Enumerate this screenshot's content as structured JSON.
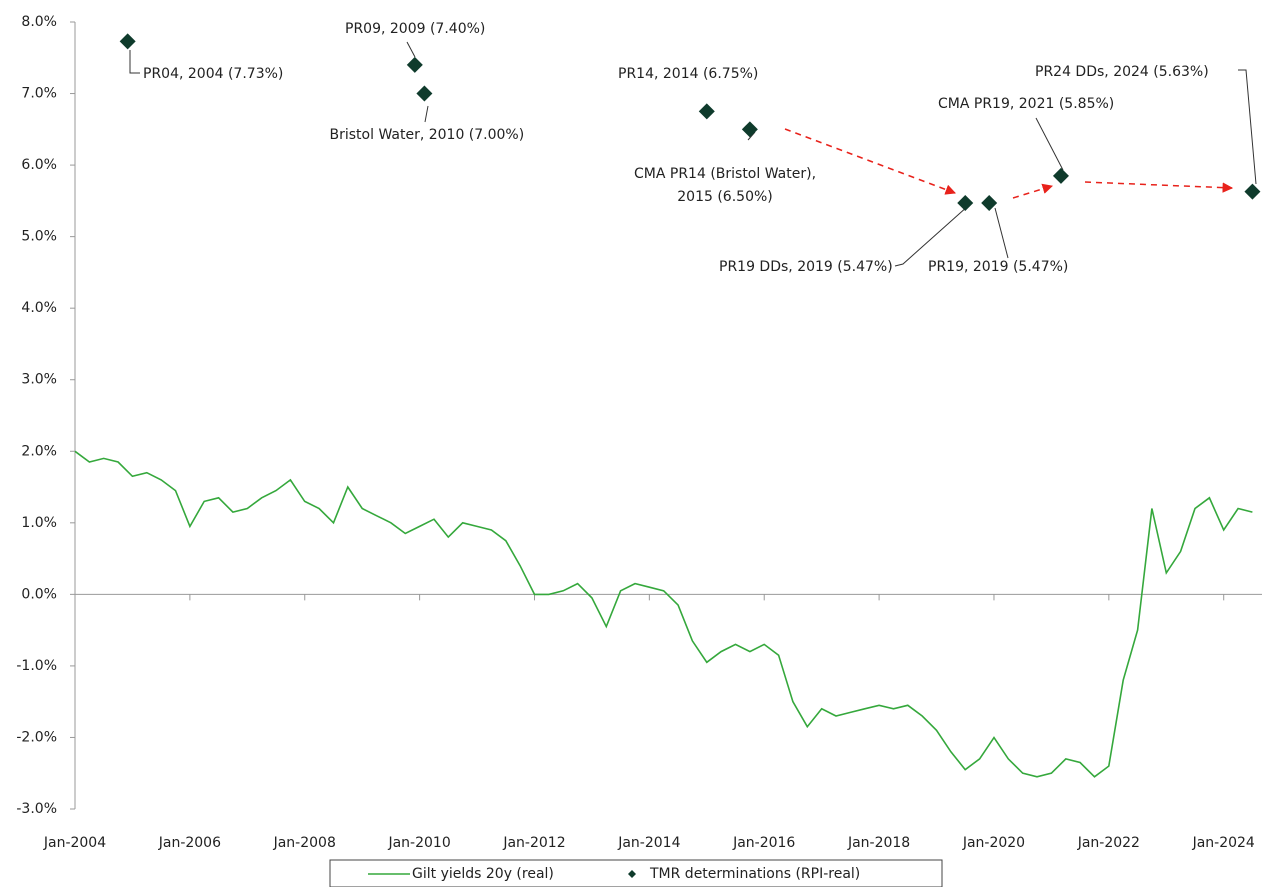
{
  "chart_data": {
    "type": "line",
    "xlim": [
      "2004-01",
      "2024-09"
    ],
    "ylim": [
      -3,
      8
    ],
    "yticks": [
      {
        "value": -3,
        "label": "-3.0%"
      },
      {
        "value": -2,
        "label": "-2.0%"
      },
      {
        "value": -1,
        "label": "-1.0%"
      },
      {
        "value": 0,
        "label": "0.0%"
      },
      {
        "value": 1,
        "label": "1.0%"
      },
      {
        "value": 2,
        "label": "2.0%"
      },
      {
        "value": 3,
        "label": "3.0%"
      },
      {
        "value": 4,
        "label": "4.0%"
      },
      {
        "value": 5,
        "label": "5.0%"
      },
      {
        "value": 6,
        "label": "6.0%"
      },
      {
        "value": 7,
        "label": "7.0%"
      },
      {
        "value": 8,
        "label": "8.0%"
      }
    ],
    "xticks": [
      {
        "value": "2004-01",
        "label": "Jan-2004"
      },
      {
        "value": "2006-01",
        "label": "Jan-2006"
      },
      {
        "value": "2008-01",
        "label": "Jan-2008"
      },
      {
        "value": "2010-01",
        "label": "Jan-2010"
      },
      {
        "value": "2012-01",
        "label": "Jan-2012"
      },
      {
        "value": "2014-01",
        "label": "Jan-2014"
      },
      {
        "value": "2016-01",
        "label": "Jan-2016"
      },
      {
        "value": "2018-01",
        "label": "Jan-2018"
      },
      {
        "value": "2020-01",
        "label": "Jan-2020"
      },
      {
        "value": "2022-01",
        "label": "Jan-2022"
      },
      {
        "value": "2024-01",
        "label": "Jan-2024"
      }
    ],
    "legend": "bottom",
    "series": [
      {
        "name": "Gilt yields 20y (real)",
        "type": "line",
        "color": "#35a83c",
        "x": [
          "2004-01",
          "2004-04",
          "2004-07",
          "2004-10",
          "2005-01",
          "2005-04",
          "2005-07",
          "2005-10",
          "2006-01",
          "2006-04",
          "2006-07",
          "2006-10",
          "2007-01",
          "2007-04",
          "2007-07",
          "2007-10",
          "2008-01",
          "2008-04",
          "2008-07",
          "2008-10",
          "2009-01",
          "2009-04",
          "2009-07",
          "2009-10",
          "2010-01",
          "2010-04",
          "2010-07",
          "2010-10",
          "2011-01",
          "2011-04",
          "2011-07",
          "2011-10",
          "2012-01",
          "2012-04",
          "2012-07",
          "2012-10",
          "2013-01",
          "2013-04",
          "2013-07",
          "2013-10",
          "2014-01",
          "2014-04",
          "2014-07",
          "2014-10",
          "2015-01",
          "2015-04",
          "2015-07",
          "2015-10",
          "2016-01",
          "2016-04",
          "2016-07",
          "2016-10",
          "2017-01",
          "2017-04",
          "2017-07",
          "2017-10",
          "2018-01",
          "2018-04",
          "2018-07",
          "2018-10",
          "2019-01",
          "2019-04",
          "2019-07",
          "2019-10",
          "2020-01",
          "2020-04",
          "2020-07",
          "2020-10",
          "2021-01",
          "2021-04",
          "2021-07",
          "2021-10",
          "2022-01",
          "2022-04",
          "2022-07",
          "2022-10",
          "2023-01",
          "2023-04",
          "2023-07",
          "2023-10",
          "2024-01",
          "2024-04",
          "2024-07"
        ],
        "values": [
          2.0,
          1.85,
          1.9,
          1.85,
          1.65,
          1.7,
          1.6,
          1.45,
          0.95,
          1.3,
          1.35,
          1.15,
          1.2,
          1.35,
          1.45,
          1.6,
          1.3,
          1.2,
          1.0,
          1.5,
          1.2,
          1.1,
          1.0,
          0.85,
          0.95,
          1.05,
          0.8,
          1.0,
          0.95,
          0.9,
          0.75,
          0.4,
          0.0,
          0.0,
          0.05,
          0.15,
          -0.05,
          -0.45,
          0.05,
          0.15,
          0.1,
          0.05,
          -0.15,
          -0.65,
          -0.95,
          -0.8,
          -0.7,
          -0.8,
          -0.7,
          -0.85,
          -1.5,
          -1.85,
          -1.6,
          -1.7,
          -1.65,
          -1.6,
          -1.55,
          -1.6,
          -1.55,
          -1.7,
          -1.9,
          -2.2,
          -2.45,
          -2.3,
          -2.0,
          -2.3,
          -2.5,
          -2.55,
          -2.5,
          -2.3,
          -2.35,
          -2.55,
          -2.4,
          -1.2,
          -0.5,
          1.2,
          0.3,
          0.6,
          1.2,
          1.35,
          0.9,
          1.2,
          1.15
        ]
      },
      {
        "name": "TMR determinations (RPI-real)",
        "type": "scatter",
        "color": "#0f3b2c",
        "x": [
          "2004-12",
          "2009-12",
          "2010-02",
          "2015-01",
          "2015-10",
          "2019-07",
          "2019-12",
          "2021-03",
          "2024-07"
        ],
        "values": [
          7.73,
          7.4,
          7.0,
          6.75,
          6.5,
          5.47,
          5.47,
          5.85,
          5.63
        ],
        "labels": [
          "PR04, 2004 (7.73%)",
          "PR09, 2009 (7.40%)",
          "Bristol Water, 2010 (7.00%)",
          "PR14, 2014 (6.75%)",
          "CMA PR14 (Bristol Water),\n2015 (6.50%)",
          "PR19 DDs, 2019 (5.47%)",
          "PR19, 2019 (5.47%)",
          "CMA PR19, 2021 (5.85%)",
          "PR24 DDs, 2024 (5.63%)"
        ]
      }
    ]
  }
}
